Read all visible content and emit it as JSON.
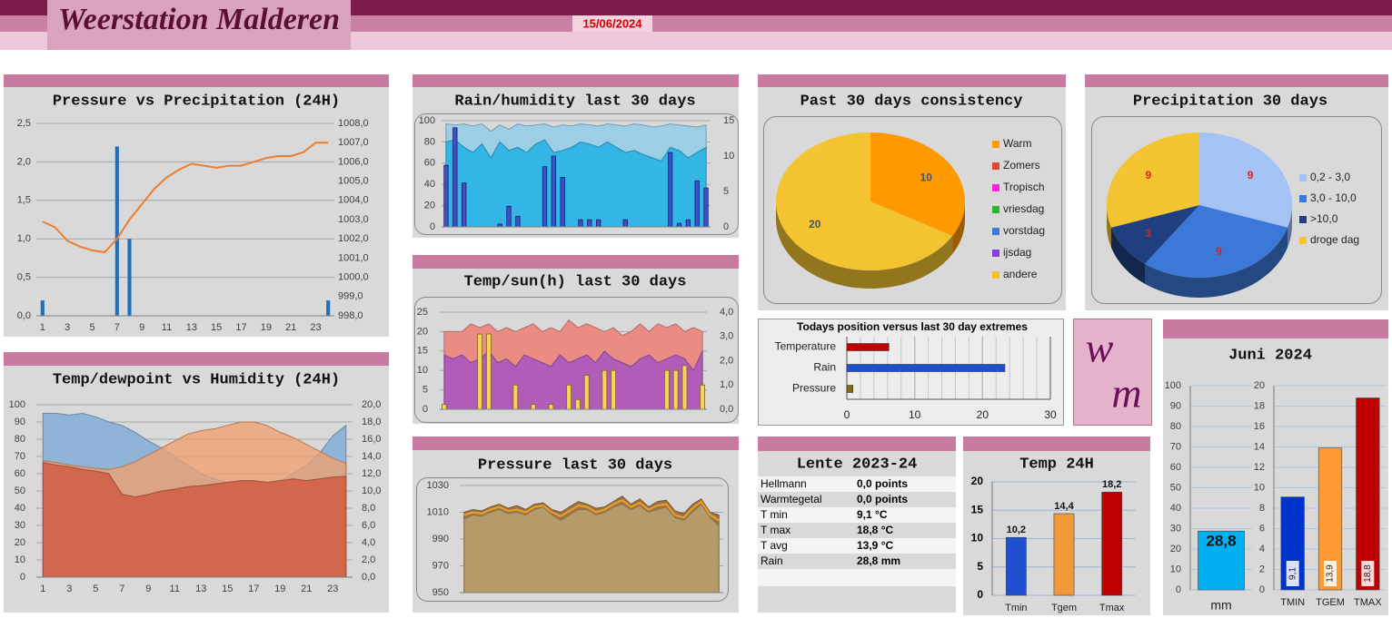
{
  "header": {
    "title": "Weerstation Malderen",
    "date": "15/06/2024",
    "logo": [
      "w",
      "m"
    ]
  },
  "table": {
    "title": "Lente 2023-24",
    "rows": [
      [
        "Hellmann",
        "0,0 points"
      ],
      [
        "Warmtegetal",
        "0,0 points"
      ],
      [
        "T min",
        "9,1 °C"
      ],
      [
        "T max",
        "18,8 °C"
      ],
      [
        "T avg",
        "13,9 °C"
      ],
      [
        "Rain",
        "28,8 mm"
      ]
    ]
  },
  "chart_data": [
    {
      "type": "combo",
      "title": "Pressure vs Precipitation (24H)",
      "categories": [
        1,
        null,
        3,
        null,
        5,
        null,
        7,
        null,
        9,
        null,
        11,
        null,
        13,
        null,
        15,
        null,
        17,
        null,
        19,
        null,
        21,
        null,
        23,
        null
      ],
      "ylim": [
        0,
        2.5
      ],
      "yticks": [
        {
          "value": 0,
          "label": "0,0"
        },
        {
          "value": 0.5,
          "label": "0,5"
        },
        {
          "value": 1,
          "label": "1,0"
        },
        {
          "value": 1.5,
          "label": "1,5"
        },
        {
          "value": 2,
          "label": "2,0"
        },
        {
          "value": 2.5,
          "label": "2,5"
        }
      ],
      "y2lim": [
        998,
        1008
      ],
      "y2ticks": [
        {
          "value": 998,
          "label": "998,0"
        },
        {
          "value": 999,
          "label": "999,0"
        },
        {
          "value": 1000,
          "label": "1000,0"
        },
        {
          "value": 1001,
          "label": "1001,0"
        },
        {
          "value": 1002,
          "label": "1002,0"
        },
        {
          "value": 1003,
          "label": "1003,0"
        },
        {
          "value": 1004,
          "label": "1004,0"
        },
        {
          "value": 1005,
          "label": "1005,0"
        },
        {
          "value": 1006,
          "label": "1006,0"
        },
        {
          "value": 1007,
          "label": "1007,0"
        },
        {
          "value": 1008,
          "label": "1008,0"
        }
      ],
      "grid": true,
      "series": [
        {
          "kind": "bar",
          "color": "#1f6fbf",
          "values": [
            0.2,
            0,
            0,
            0,
            0,
            0,
            2.2,
            1.0,
            0,
            0,
            0,
            0,
            0,
            0,
            0,
            0,
            0,
            0,
            0,
            0,
            0,
            0,
            0,
            0.2
          ]
        },
        {
          "kind": "line",
          "axis": "y2",
          "color": "#ed7d31",
          "values": [
            1002.9,
            1002.6,
            1001.9,
            1001.6,
            1001.4,
            1001.3,
            1002.0,
            1003.0,
            1003.8,
            1004.6,
            1005.2,
            1005.6,
            1005.9,
            1005.8,
            1005.7,
            1005.8,
            1005.8,
            1006.0,
            1006.2,
            1006.3,
            1006.3,
            1006.5,
            1007.0,
            1007.0
          ]
        }
      ]
    },
    {
      "type": "combo",
      "title": "Temp/dewpoint vs Humidity (24H)",
      "categories": [
        1,
        null,
        3,
        null,
        5,
        null,
        7,
        null,
        9,
        null,
        11,
        null,
        13,
        null,
        15,
        null,
        17,
        null,
        19,
        null,
        21,
        null,
        23,
        null
      ],
      "ylim": [
        0,
        100
      ],
      "yticks": [
        0,
        10,
        20,
        30,
        40,
        50,
        60,
        70,
        80,
        90,
        100
      ],
      "y2lim": [
        0,
        20
      ],
      "y2ticks": [
        {
          "value": 0,
          "label": "0,0"
        },
        {
          "value": 2,
          "label": "2,0"
        },
        {
          "value": 4,
          "label": "4,0"
        },
        {
          "value": 6,
          "label": "6,0"
        },
        {
          "value": 8,
          "label": "8,0"
        },
        {
          "value": 10,
          "label": "10,0"
        },
        {
          "value": 12,
          "label": "12,0"
        },
        {
          "value": 14,
          "label": "14,0"
        },
        {
          "value": 16,
          "label": "16,0"
        },
        {
          "value": 18,
          "label": "18,0"
        },
        {
          "value": 20,
          "label": "20,0"
        }
      ],
      "grid": true,
      "series": [
        {
          "kind": "area",
          "color": "#8fb4d8",
          "values": [
            95,
            95,
            94,
            95,
            93,
            90,
            88,
            84,
            79,
            75,
            70,
            65,
            60,
            57,
            55,
            53,
            52,
            53,
            56,
            60,
            65,
            72,
            82,
            88
          ]
        },
        {
          "kind": "area",
          "axis": "y2",
          "color": "#f0a070",
          "values": [
            13.5,
            13.3,
            13.0,
            12.8,
            12.6,
            12.5,
            12.8,
            13.4,
            14.2,
            15.0,
            15.8,
            16.6,
            17.0,
            17.2,
            17.6,
            18.0,
            18.0,
            17.6,
            16.8,
            16.2,
            15.4,
            14.6,
            13.8,
            13.2
          ]
        },
        {
          "kind": "area",
          "axis": "y2",
          "color": "#d2674e",
          "values": [
            13.3,
            13.0,
            12.8,
            12.5,
            12.3,
            12.0,
            9.6,
            9.3,
            9.6,
            10.0,
            10.2,
            10.5,
            10.6,
            10.8,
            11.0,
            11.2,
            11.2,
            11.0,
            11.2,
            11.4,
            11.2,
            11.4,
            11.6,
            11.7
          ]
        }
      ]
    },
    {
      "type": "combo",
      "title": "Rain/humidity last 30 days",
      "ylim": [
        0,
        100
      ],
      "yticks": [
        0,
        20,
        40,
        60,
        80,
        100
      ],
      "y2lim": [
        0,
        15
      ],
      "y2ticks": [
        0,
        5,
        10,
        15
      ],
      "grid": true,
      "series": [
        {
          "kind": "area",
          "color": "#9ccfe6",
          "values": [
            97,
            96,
            97,
            95,
            97,
            90,
            96,
            92,
            97,
            95,
            96,
            97,
            94,
            96,
            95,
            97,
            96,
            95,
            97,
            96,
            95,
            97,
            96,
            94,
            95,
            97,
            96,
            95,
            94,
            96
          ]
        },
        {
          "kind": "area",
          "color": "#33b5e5",
          "values": [
            80,
            82,
            75,
            70,
            78,
            65,
            80,
            72,
            75,
            70,
            78,
            82,
            70,
            72,
            75,
            80,
            78,
            75,
            80,
            75,
            70,
            72,
            68,
            65,
            62,
            75,
            72,
            65,
            70,
            75
          ]
        },
        {
          "kind": "bar",
          "axis": "y2",
          "color": "#3f51c8",
          "values": [
            8.7,
            14,
            6.2,
            0,
            0,
            0,
            0.4,
            2.9,
            1.5,
            0,
            0,
            8.5,
            10,
            7,
            0,
            1,
            1,
            1,
            0,
            0,
            1,
            0,
            0,
            0,
            0,
            10.5,
            0.5,
            1,
            6.5,
            5.5
          ]
        }
      ]
    },
    {
      "type": "combo",
      "title": "Temp/sun(h) last 30 days",
      "ylim": [
        0,
        25
      ],
      "yticks": [
        0,
        5,
        10,
        15,
        20,
        25
      ],
      "y2lim": [
        0,
        4
      ],
      "y2ticks": [
        {
          "value": 0,
          "label": "0,0"
        },
        {
          "value": 1,
          "label": "1,0"
        },
        {
          "value": 2,
          "label": "2,0"
        },
        {
          "value": 3,
          "label": "3,0"
        },
        {
          "value": 4,
          "label": "4,0"
        }
      ],
      "grid": true,
      "series": [
        {
          "kind": "area",
          "color": "#ea8c84",
          "values": [
            20,
            20,
            20,
            22,
            21,
            22,
            20,
            21,
            20,
            21,
            22,
            20,
            21,
            20,
            23,
            21,
            22,
            21,
            20,
            21,
            19,
            20,
            22,
            20,
            22,
            21,
            22,
            20,
            21,
            20
          ]
        },
        {
          "kind": "area",
          "color": "#b05cb8",
          "values": [
            14,
            13,
            14,
            12,
            13,
            15,
            12,
            13,
            11,
            14,
            13,
            12,
            11,
            14,
            12,
            13,
            14,
            12,
            15,
            13,
            12,
            11,
            13,
            14,
            12,
            13,
            14,
            13,
            10,
            15
          ]
        },
        {
          "kind": "bar",
          "axis": "y2",
          "color": "#f6d45a",
          "values": [
            0.2,
            0,
            0,
            0,
            3.1,
            3.1,
            0,
            0,
            1.0,
            0,
            0.2,
            0,
            0.2,
            0,
            1.0,
            0.4,
            1.4,
            0,
            1.6,
            1.6,
            0,
            0,
            0,
            0,
            0,
            1.6,
            1.6,
            1.8,
            0,
            1.0
          ]
        }
      ]
    },
    {
      "type": "combo",
      "title": "Pressure last 30 days",
      "ylim": [
        950,
        1030
      ],
      "yticks": [
        950,
        970,
        990,
        1010,
        1030
      ],
      "grid": true,
      "series": [
        {
          "kind": "area",
          "color": "#9c7448",
          "values": [
            1010,
            1012,
            1011,
            1014,
            1016,
            1013,
            1015,
            1012,
            1016,
            1017,
            1012,
            1010,
            1014,
            1018,
            1016,
            1013,
            1014,
            1018,
            1022,
            1016,
            1020,
            1014,
            1018,
            1019,
            1011,
            1009,
            1016,
            1020,
            1010,
            1008
          ]
        },
        {
          "kind": "area",
          "color": "#b59a6a",
          "values": [
            1005,
            1008,
            1007,
            1010,
            1012,
            1009,
            1010,
            1008,
            1012,
            1014,
            1008,
            1004,
            1008,
            1012,
            1012,
            1008,
            1010,
            1014,
            1016,
            1012,
            1015,
            1010,
            1012,
            1014,
            1006,
            1004,
            1010,
            1016,
            1006,
            1000
          ]
        },
        {
          "kind": "line",
          "color": "#f0a020",
          "values": [
            1008,
            1010,
            1009,
            1012,
            1014,
            1011,
            1012,
            1010,
            1014,
            1015,
            1010,
            1007,
            1011,
            1015,
            1014,
            1010,
            1012,
            1016,
            1019,
            1014,
            1017,
            1012,
            1015,
            1016,
            1008,
            1006,
            1013,
            1018,
            1008,
            1004
          ]
        }
      ]
    },
    {
      "type": "pie",
      "title": "Past 30 days consistency",
      "categories": [
        "Warm",
        "Zomers",
        "Tropisch",
        "vriesdag",
        "vorstdag",
        "ijsdag",
        "andere"
      ],
      "values": [
        10,
        0,
        0,
        0,
        0,
        0,
        20
      ],
      "colors": [
        "#ff9900",
        "#e0482a",
        "#ff22dd",
        "#2fb52f",
        "#3c78d8",
        "#8a3ee0",
        "#f4c430"
      ]
    },
    {
      "type": "pie",
      "title": "Precipitation 30 days",
      "categories": [
        "0,2 - 3,0",
        "3,0 - 10,0",
        ">10,0",
        "droge dag"
      ],
      "values": [
        9,
        9,
        3,
        9
      ],
      "colors": [
        "#a4c2f4",
        "#3c78d8",
        "#1f3f80",
        "#f4c430"
      ]
    },
    {
      "type": "hbar",
      "title": "Todays position versus last 30 day extremes",
      "categories": [
        "Temperature",
        "Rain",
        "Pressure"
      ],
      "values": [
        6.2,
        23.3,
        0.9
      ],
      "colors": [
        "#c00000",
        "#1f4fcf",
        "#8b6914"
      ],
      "xlim": [
        0,
        30
      ],
      "xticks": [
        0,
        10,
        20,
        30
      ],
      "grid": true
    },
    {
      "type": "bar",
      "title": "Temp 24H",
      "categories": [
        "Tmin",
        "Tgem",
        "Tmax"
      ],
      "values": [
        10.2,
        14.4,
        18.2
      ],
      "value_labels": [
        "10,2",
        "14,4",
        "18,2"
      ],
      "colors": [
        "#1f4fcf",
        "#f0983a",
        "#c00000"
      ],
      "ylim": [
        0,
        20
      ],
      "yticks": [
        0,
        5,
        10,
        15,
        20
      ],
      "grid": true
    },
    {
      "type": "bar",
      "title": "Juni 2024",
      "categories": [
        "mm"
      ],
      "values": [
        28.8
      ],
      "value_labels": [
        "28,8"
      ],
      "colors": [
        "#00b0f0"
      ],
      "ylim": [
        0,
        100
      ],
      "yticks": [
        0,
        10,
        20,
        30,
        40,
        50,
        60,
        70,
        80,
        90,
        100
      ],
      "grid": true
    },
    {
      "type": "bar",
      "categories": [
        "TMIN",
        "TGEM",
        "TMAX"
      ],
      "values": [
        9.1,
        13.9,
        18.8
      ],
      "value_labels": [
        "9,1",
        "13,9",
        "18,8"
      ],
      "colors": [
        "#0033cc",
        "#ff9933",
        "#c00000"
      ],
      "ylim": [
        0,
        20
      ],
      "yticks": [
        0,
        2,
        4,
        6,
        8,
        10,
        12,
        14,
        16,
        18,
        20
      ],
      "grid": true
    }
  ]
}
